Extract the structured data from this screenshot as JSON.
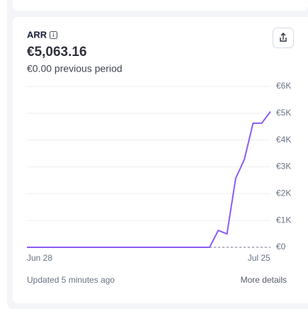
{
  "card": {
    "title": "ARR",
    "amount": "€5,063.16",
    "comparison": "€0.00 previous period",
    "updated": "Updated 5 minutes ago",
    "link": "More details"
  },
  "chart_data": {
    "type": "line",
    "categories": [
      "Jun 28",
      null,
      null,
      null,
      null,
      null,
      null,
      null,
      null,
      null,
      null,
      null,
      null,
      null,
      null,
      null,
      null,
      null,
      null,
      null,
      null,
      null,
      null,
      null,
      null,
      null,
      null,
      "Jul 25",
      null
    ],
    "series": [
      {
        "color": "#8b5cf6",
        "values": [
          0,
          0,
          0,
          0,
          0,
          0,
          0,
          0,
          0,
          0,
          0,
          0,
          0,
          0,
          0,
          0,
          0,
          0,
          0,
          0,
          0,
          0,
          630,
          500,
          2570,
          3280,
          4630,
          4630,
          5063.16
        ]
      },
      {
        "color": "#9ca3af",
        "dashed": true,
        "values": [
          0,
          0,
          0,
          0,
          0,
          0,
          0,
          0,
          0,
          0,
          0,
          0,
          0,
          0,
          0,
          0,
          0,
          0,
          0,
          0,
          0,
          0,
          0,
          0,
          0,
          0,
          0,
          0,
          0
        ]
      }
    ],
    "ylim": [
      0,
      6000
    ],
    "yticks": [
      {
        "value": 0,
        "label": "€0"
      },
      {
        "value": 1000,
        "label": "€1K"
      },
      {
        "value": 2000,
        "label": "€2K"
      },
      {
        "value": 3000,
        "label": "€3K"
      },
      {
        "value": 4000,
        "label": "€4K"
      },
      {
        "value": 5000,
        "label": "€5K"
      },
      {
        "value": 6000,
        "label": "€6K"
      }
    ],
    "grid": true
  }
}
